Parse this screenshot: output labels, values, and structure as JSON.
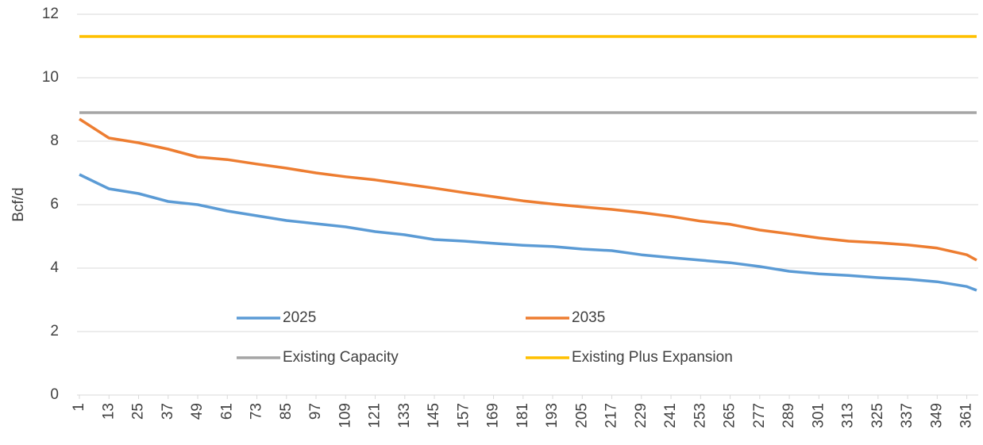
{
  "chart_data": {
    "type": "line",
    "y_label": "Bcf/d",
    "x": [
      1,
      13,
      25,
      37,
      49,
      61,
      73,
      85,
      97,
      109,
      121,
      133,
      145,
      157,
      169,
      181,
      193,
      205,
      217,
      229,
      241,
      253,
      265,
      277,
      289,
      301,
      313,
      325,
      337,
      349,
      361,
      365
    ],
    "xlim": [
      1,
      365
    ],
    "xticks": [
      1,
      13,
      25,
      37,
      49,
      61,
      73,
      85,
      97,
      109,
      121,
      133,
      145,
      157,
      169,
      181,
      193,
      205,
      217,
      229,
      241,
      253,
      265,
      277,
      289,
      301,
      313,
      325,
      337,
      349,
      361
    ],
    "ylim": [
      0,
      12
    ],
    "yticks": [
      0,
      2,
      4,
      6,
      8,
      10,
      12
    ],
    "grid": true,
    "series": [
      {
        "name": "2025",
        "color": "#5b9bd5",
        "values": [
          6.95,
          6.5,
          6.35,
          6.1,
          6.0,
          5.8,
          5.65,
          5.5,
          5.4,
          5.3,
          5.15,
          5.05,
          4.9,
          4.85,
          4.78,
          4.72,
          4.68,
          4.6,
          4.55,
          4.42,
          4.33,
          4.25,
          4.17,
          4.05,
          3.9,
          3.82,
          3.77,
          3.7,
          3.65,
          3.57,
          3.42,
          3.3
        ]
      },
      {
        "name": "2035",
        "color": "#ed7d31",
        "values": [
          8.7,
          8.1,
          7.95,
          7.75,
          7.5,
          7.42,
          7.28,
          7.15,
          7.0,
          6.88,
          6.78,
          6.65,
          6.52,
          6.38,
          6.25,
          6.12,
          6.02,
          5.93,
          5.85,
          5.75,
          5.63,
          5.48,
          5.38,
          5.2,
          5.08,
          4.95,
          4.85,
          4.8,
          4.73,
          4.63,
          4.42,
          4.25
        ]
      },
      {
        "name": "Existing Capacity",
        "color": "#a5a5a5",
        "values": [
          8.9,
          8.9,
          8.9,
          8.9,
          8.9,
          8.9,
          8.9,
          8.9,
          8.9,
          8.9,
          8.9,
          8.9,
          8.9,
          8.9,
          8.9,
          8.9,
          8.9,
          8.9,
          8.9,
          8.9,
          8.9,
          8.9,
          8.9,
          8.9,
          8.9,
          8.9,
          8.9,
          8.9,
          8.9,
          8.9,
          8.9,
          8.9
        ]
      },
      {
        "name": "Existing Plus Expansion",
        "color": "#ffc000",
        "values": [
          11.3,
          11.3,
          11.3,
          11.3,
          11.3,
          11.3,
          11.3,
          11.3,
          11.3,
          11.3,
          11.3,
          11.3,
          11.3,
          11.3,
          11.3,
          11.3,
          11.3,
          11.3,
          11.3,
          11.3,
          11.3,
          11.3,
          11.3,
          11.3,
          11.3,
          11.3,
          11.3,
          11.3,
          11.3,
          11.3,
          11.3,
          11.3
        ]
      }
    ]
  }
}
